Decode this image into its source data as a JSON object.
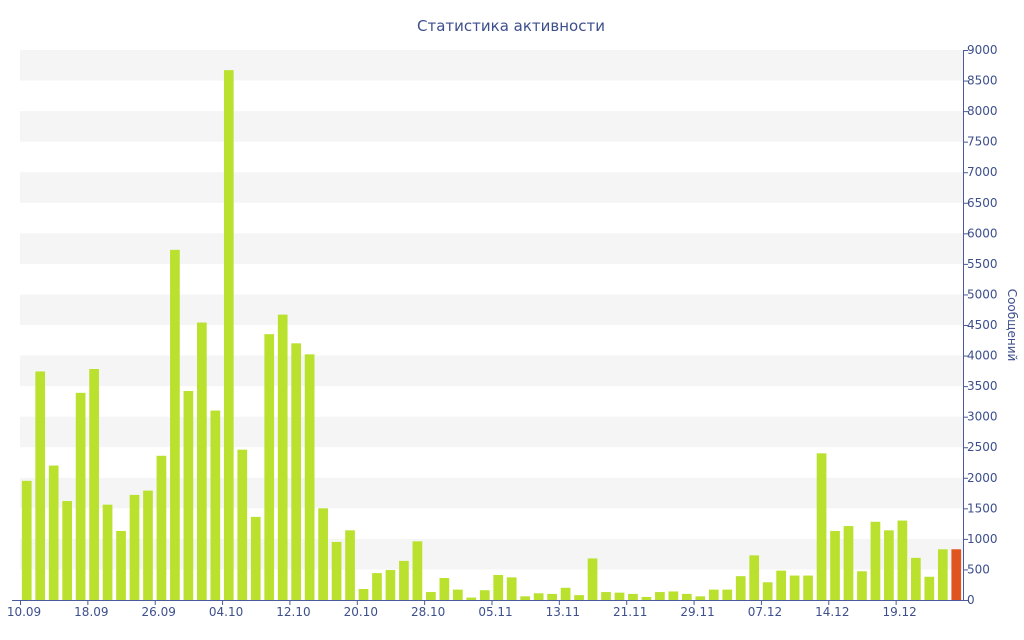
{
  "chart_data": {
    "type": "bar",
    "title": "Статистика активности",
    "xlabel": "",
    "ylabel": "Сообщений",
    "ylim": [
      0,
      9000
    ],
    "y_ticks": [
      0,
      500,
      1000,
      1500,
      2000,
      2500,
      3000,
      3500,
      4000,
      4500,
      5000,
      5500,
      6000,
      6500,
      7000,
      7500,
      8000,
      8500,
      9000
    ],
    "y_axis_position": "right",
    "grid": "alternating horizontal bands",
    "x_tick_labels": [
      "10.09",
      "18.09",
      "26.09",
      "04.10",
      "12.10",
      "20.10",
      "28.10",
      "05.11",
      "13.11",
      "21.11",
      "29.11",
      "07.12",
      "14.12",
      "19.12"
    ],
    "x_tick_positions": [
      0,
      5,
      10,
      15,
      20,
      25,
      30,
      35,
      40,
      45,
      50,
      55,
      60,
      65
    ],
    "values": [
      1950,
      3740,
      2200,
      1620,
      3390,
      3780,
      1560,
      1130,
      1720,
      1790,
      2360,
      5730,
      3420,
      4540,
      3100,
      8670,
      2460,
      1360,
      4350,
      4670,
      4200,
      4020,
      1500,
      950,
      1140,
      180,
      440,
      490,
      640,
      960,
      130,
      360,
      170,
      40,
      160,
      410,
      370,
      60,
      110,
      100,
      200,
      80,
      680,
      130,
      120,
      100,
      50,
      130,
      140,
      100,
      60,
      170,
      170,
      390,
      730,
      290,
      480,
      400,
      400,
      2400,
      1130,
      1210,
      470,
      1280,
      1140,
      1300,
      690,
      380,
      830,
      830
    ],
    "highlight_index": 69,
    "colors": {
      "bar": "#b9e12e",
      "highlight": "#e0541f",
      "band": "#f5f5f5",
      "axis": "#4a5a9a",
      "text": "#3d4f8c"
    }
  }
}
